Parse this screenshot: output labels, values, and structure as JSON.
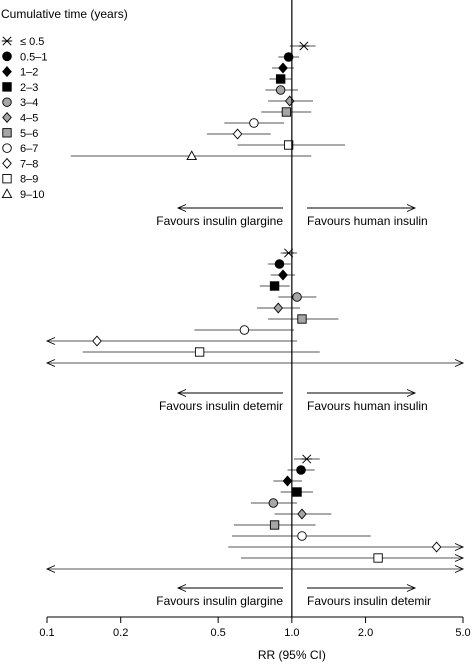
{
  "chart_data": {
    "type": "forest-plot",
    "x_scale": "log",
    "xlabel": "RR (95% CI)",
    "xlim": [
      0.1,
      5.0
    ],
    "xticks": [
      0.1,
      0.2,
      0.5,
      1.0,
      2.0,
      5.0
    ],
    "xtick_labels": [
      "0.1",
      "0.2",
      "0.5",
      "1.0",
      "2.0",
      "5.0"
    ],
    "reference_line": 1.0,
    "legend": {
      "title": "Cumulative time (years)",
      "placement": "top-left",
      "entries": [
        {
          "label": "≤ 0.5",
          "marker": "asterisk"
        },
        {
          "label": "0.5–1",
          "marker": "filled-circle"
        },
        {
          "label": "1–2",
          "marker": "filled-diamond"
        },
        {
          "label": "2–3",
          "marker": "filled-square"
        },
        {
          "label": "3–4",
          "marker": "grey-circle"
        },
        {
          "label": "4–5",
          "marker": "grey-diamond"
        },
        {
          "label": "5–6",
          "marker": "grey-square"
        },
        {
          "label": "6–7",
          "marker": "open-circle"
        },
        {
          "label": "7–8",
          "marker": "open-diamond"
        },
        {
          "label": "8–9",
          "marker": "open-square"
        },
        {
          "label": "9–10",
          "marker": "open-triangle"
        }
      ]
    },
    "panels": [
      {
        "left_label": "Favours insulin glargine",
        "right_label": "Favours human insulin",
        "rows": [
          {
            "interval": "≤ 0.5",
            "rr": 1.12,
            "lo": 0.98,
            "hi": 1.25,
            "left_open": false,
            "right_open": false
          },
          {
            "interval": "0.5–1",
            "rr": 0.97,
            "lo": 0.88,
            "hi": 1.07,
            "left_open": false,
            "right_open": false
          },
          {
            "interval": "1–2",
            "rr": 0.92,
            "lo": 0.83,
            "hi": 1.02,
            "left_open": false,
            "right_open": false
          },
          {
            "interval": "2–3",
            "rr": 0.9,
            "lo": 0.81,
            "hi": 1.0,
            "left_open": false,
            "right_open": false
          },
          {
            "interval": "3–4",
            "rr": 0.9,
            "lo": 0.78,
            "hi": 1.06,
            "left_open": false,
            "right_open": false
          },
          {
            "interval": "4–5",
            "rr": 0.98,
            "lo": 0.8,
            "hi": 1.22,
            "left_open": false,
            "right_open": false
          },
          {
            "interval": "5–6",
            "rr": 0.95,
            "lo": 0.75,
            "hi": 1.2,
            "left_open": false,
            "right_open": false
          },
          {
            "interval": "6–7",
            "rr": 0.7,
            "lo": 0.53,
            "hi": 0.93,
            "left_open": false,
            "right_open": false
          },
          {
            "interval": "7–8",
            "rr": 0.6,
            "lo": 0.45,
            "hi": 0.82,
            "left_open": false,
            "right_open": false
          },
          {
            "interval": "8–9",
            "rr": 0.97,
            "lo": 0.6,
            "hi": 1.65,
            "left_open": false,
            "right_open": false
          },
          {
            "interval": "9–10",
            "rr": 0.39,
            "lo": 0.125,
            "hi": 1.2,
            "left_open": false,
            "right_open": false
          }
        ]
      },
      {
        "left_label": "Favours insulin detemir",
        "right_label": "Favours human insulin",
        "rows": [
          {
            "interval": "≤ 0.5",
            "rr": 0.97,
            "lo": 0.9,
            "hi": 1.05,
            "left_open": false,
            "right_open": false
          },
          {
            "interval": "0.5–1",
            "rr": 0.89,
            "lo": 0.8,
            "hi": 0.99,
            "left_open": false,
            "right_open": false
          },
          {
            "interval": "1–2",
            "rr": 0.92,
            "lo": 0.82,
            "hi": 1.03,
            "left_open": false,
            "right_open": false
          },
          {
            "interval": "2–3",
            "rr": 0.85,
            "lo": 0.74,
            "hi": 0.98,
            "left_open": false,
            "right_open": false
          },
          {
            "interval": "3–4",
            "rr": 1.05,
            "lo": 0.88,
            "hi": 1.26,
            "left_open": false,
            "right_open": false
          },
          {
            "interval": "4–5",
            "rr": 0.88,
            "lo": 0.72,
            "hi": 1.08,
            "left_open": false,
            "right_open": false
          },
          {
            "interval": "5–6",
            "rr": 1.1,
            "lo": 0.8,
            "hi": 1.55,
            "left_open": false,
            "right_open": false
          },
          {
            "interval": "6–7",
            "rr": 0.64,
            "lo": 0.4,
            "hi": 1.02,
            "left_open": false,
            "right_open": false
          },
          {
            "interval": "7–8",
            "rr": 0.16,
            "lo": 0.1,
            "hi": 1.05,
            "left_open": true,
            "right_open": false
          },
          {
            "interval": "8–9",
            "rr": 0.42,
            "lo": 0.14,
            "hi": 1.3,
            "left_open": false,
            "right_open": false
          },
          {
            "interval": "9–10",
            "rr": null,
            "lo": 0.1,
            "hi": 5.0,
            "left_open": true,
            "right_open": true
          }
        ]
      },
      {
        "left_label": "Favours insulin glargine",
        "right_label": "Favours insulin detemir",
        "rows": [
          {
            "interval": "≤ 0.5",
            "rr": 1.15,
            "lo": 1.02,
            "hi": 1.3,
            "left_open": false,
            "right_open": false
          },
          {
            "interval": "0.5–1",
            "rr": 1.09,
            "lo": 0.96,
            "hi": 1.24,
            "left_open": false,
            "right_open": false
          },
          {
            "interval": "1–2",
            "rr": 0.96,
            "lo": 0.84,
            "hi": 1.1,
            "left_open": false,
            "right_open": false
          },
          {
            "interval": "2–3",
            "rr": 1.05,
            "lo": 0.9,
            "hi": 1.22,
            "left_open": false,
            "right_open": false
          },
          {
            "interval": "3–4",
            "rr": 0.84,
            "lo": 0.68,
            "hi": 1.05,
            "left_open": false,
            "right_open": false
          },
          {
            "interval": "4–5",
            "rr": 1.1,
            "lo": 0.85,
            "hi": 1.45,
            "left_open": false,
            "right_open": false
          },
          {
            "interval": "5–6",
            "rr": 0.85,
            "lo": 0.58,
            "hi": 1.25,
            "left_open": false,
            "right_open": false
          },
          {
            "interval": "6–7",
            "rr": 1.1,
            "lo": 0.57,
            "hi": 2.1,
            "left_open": false,
            "right_open": false
          },
          {
            "interval": "7–8",
            "rr": 3.9,
            "lo": 0.55,
            "hi": 5.0,
            "left_open": false,
            "right_open": true
          },
          {
            "interval": "8–9",
            "rr": 2.25,
            "lo": 0.62,
            "hi": 5.0,
            "left_open": false,
            "right_open": true
          },
          {
            "interval": "9–10",
            "rr": null,
            "lo": 0.1,
            "hi": 5.0,
            "left_open": true,
            "right_open": true
          }
        ]
      }
    ]
  }
}
